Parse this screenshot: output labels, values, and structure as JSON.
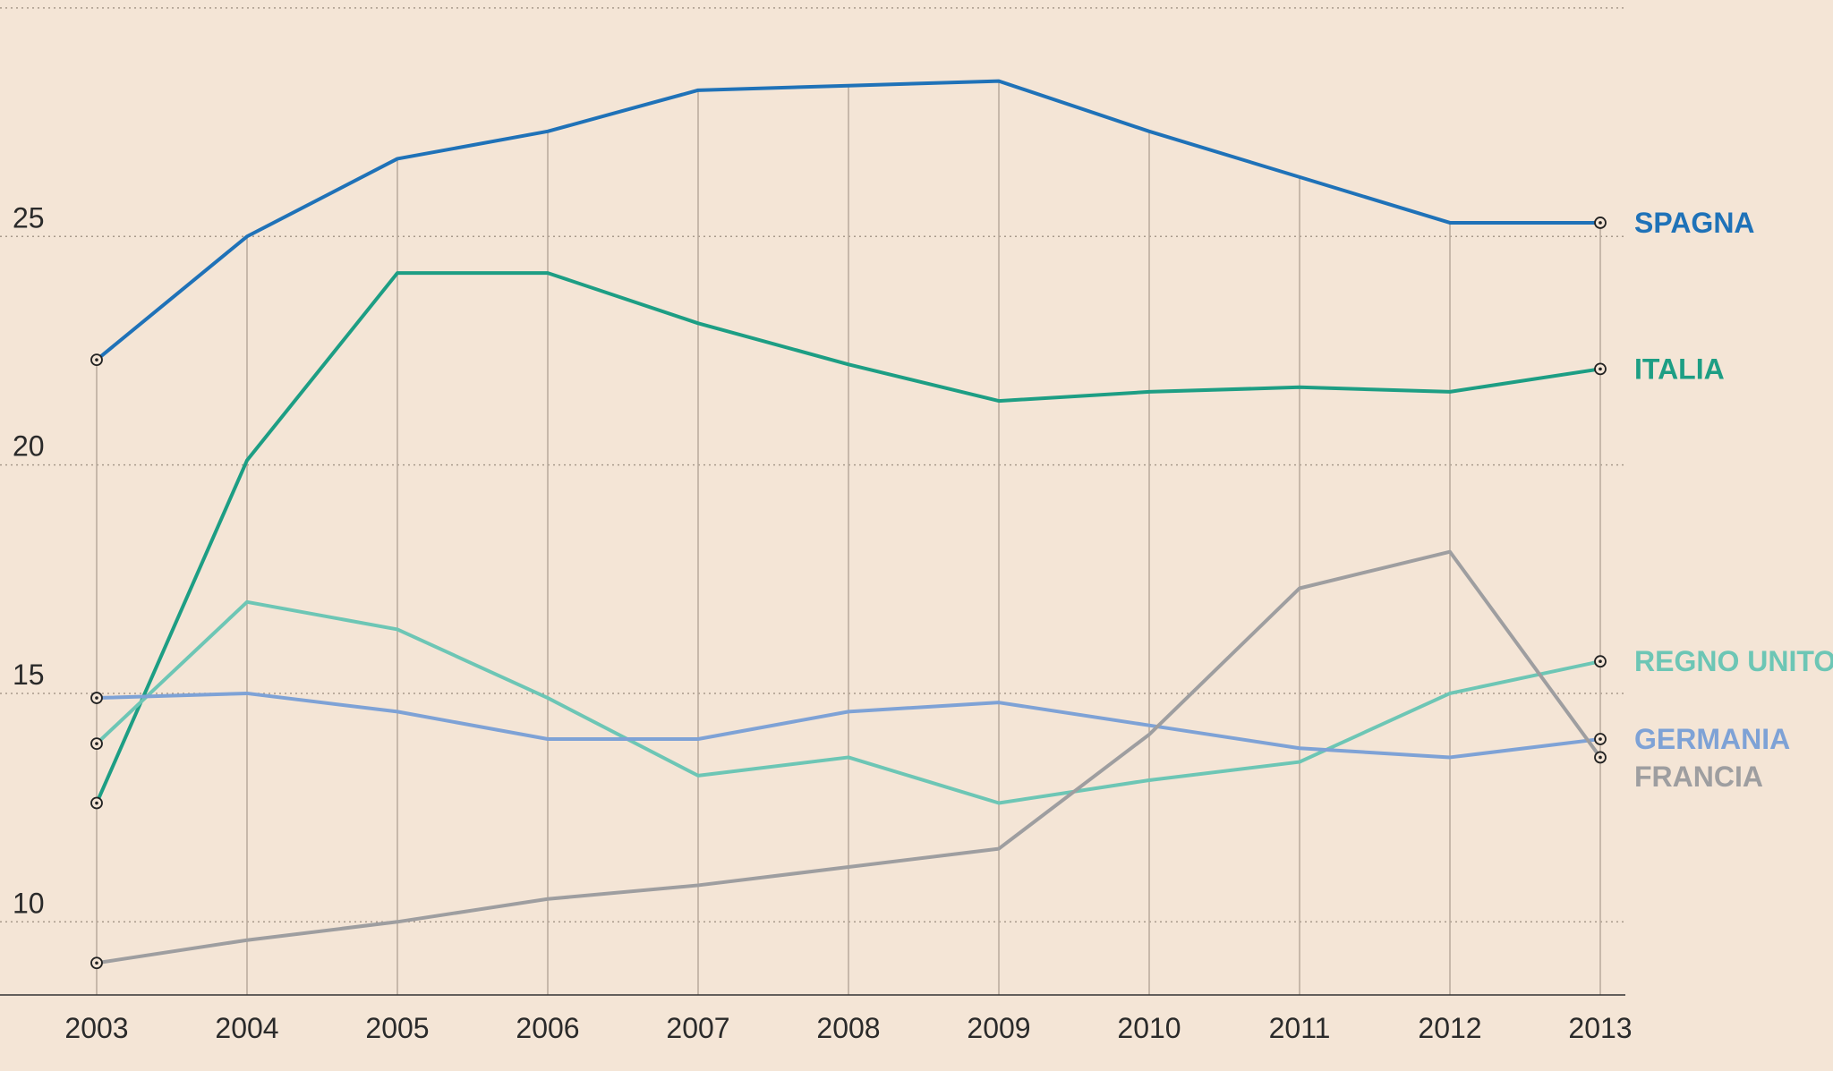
{
  "chart_data": {
    "type": "line",
    "x": [
      "2003",
      "2004",
      "2005",
      "2006",
      "2007",
      "2008",
      "2009",
      "2010",
      "2011",
      "2012",
      "2013"
    ],
    "ylim": [
      8.4,
      29.0
    ],
    "yticks": [
      10,
      15,
      20,
      25
    ],
    "grid": true,
    "series": [
      {
        "name": "SPAGNA",
        "color": "#1f72b8",
        "values": [
          22.3,
          25.0,
          26.7,
          27.3,
          28.2,
          28.3,
          28.4,
          27.3,
          26.3,
          25.3,
          25.3
        ]
      },
      {
        "name": "ITALIA",
        "color": "#1d9e84",
        "values": [
          12.6,
          20.1,
          24.2,
          24.2,
          23.1,
          22.2,
          21.4,
          21.6,
          21.7,
          21.6,
          22.1
        ]
      },
      {
        "name": "REGNO UNITO",
        "color": "#6dc6b5",
        "values": [
          13.9,
          17.0,
          16.4,
          14.9,
          13.2,
          13.6,
          12.6,
          13.1,
          13.5,
          15.0,
          15.7
        ]
      },
      {
        "name": "GERMANIA",
        "color": "#7ea2d6",
        "values": [
          14.9,
          15.0,
          14.6,
          14.0,
          14.0,
          14.6,
          14.8,
          14.3,
          13.8,
          13.6,
          14.0
        ]
      },
      {
        "name": "FRANCIA",
        "color": "#9e9ea0",
        "values": [
          9.1,
          9.6,
          10.0,
          10.5,
          10.8,
          11.2,
          11.6,
          14.1,
          17.3,
          18.1,
          13.6
        ]
      }
    ]
  }
}
